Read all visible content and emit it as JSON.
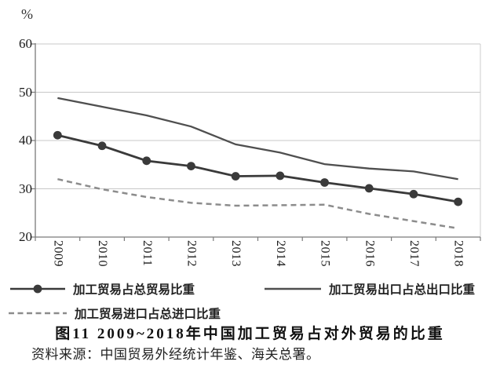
{
  "unit_label": "%",
  "chart_data": {
    "type": "line",
    "title": "图11 2009~2018年中国加工贸易占对外贸易的比重",
    "xlabel": "",
    "ylabel": "%",
    "ylim": [
      20,
      60
    ],
    "yticks": [
      60,
      50,
      40,
      30,
      20
    ],
    "grid": "horizontal",
    "legend_position": "below",
    "categories": [
      "2009",
      "2010",
      "2011",
      "2012",
      "2013",
      "2014",
      "2015",
      "2016",
      "2017",
      "2018"
    ],
    "series": [
      {
        "name": "加工贸易占总贸易比重",
        "style": "solid-with-markers",
        "color": "#3a3a3a",
        "values": [
          41.1,
          38.9,
          35.8,
          34.7,
          32.6,
          32.7,
          31.3,
          30.1,
          28.9,
          27.3
        ]
      },
      {
        "name": "加工贸易出口占总出口比重",
        "style": "solid",
        "color": "#4f4f4f",
        "values": [
          48.8,
          47.0,
          45.2,
          42.9,
          39.2,
          37.5,
          35.1,
          34.2,
          33.6,
          32.0
        ]
      },
      {
        "name": "加工贸易进口占总进口比重",
        "style": "dashed",
        "color": "#8c8c8c",
        "values": [
          32.0,
          29.9,
          28.3,
          27.1,
          26.5,
          26.6,
          26.7,
          24.8,
          23.3,
          21.8
        ]
      }
    ]
  },
  "caption": "图11  2009~2018年中国加工贸易占对外贸易的比重",
  "source": "资料来源：中国贸易外经统计年鉴、海关总署。",
  "colors": {
    "grid": "#c8c8c8",
    "axis": "#7a7a7a",
    "right_border": "#cccccc"
  }
}
